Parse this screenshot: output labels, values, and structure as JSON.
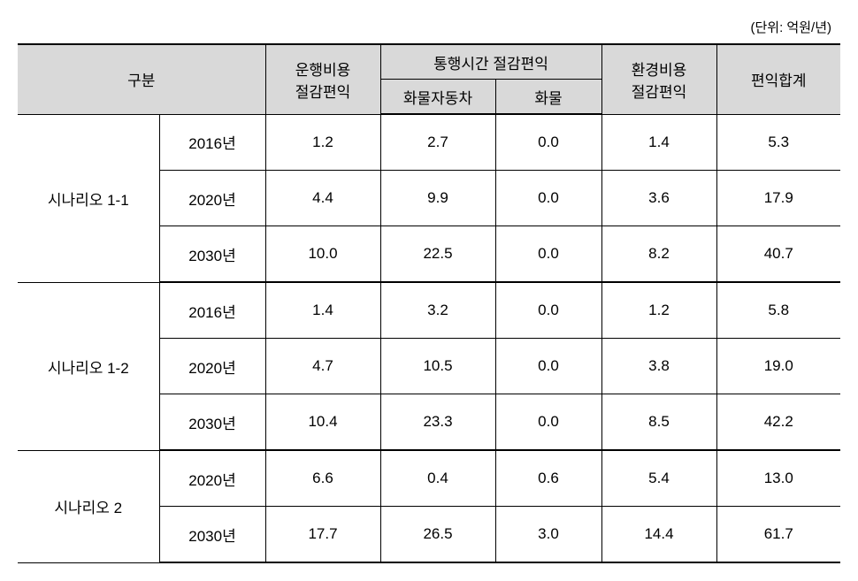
{
  "unit_label": "(단위: 억원/년)",
  "header": {
    "category": "구분",
    "op_cost": "운행비용\n절감편익",
    "travel_time": "통행시간 절감편익",
    "tt_truck": "화물자동차",
    "tt_freight": "화물",
    "env_cost": "환경비용\n절감편익",
    "total": "편익합계"
  },
  "groups": [
    {
      "name": "시나리오 1-1",
      "rows": [
        {
          "year": "2016년",
          "op": "1.2",
          "tt1": "2.7",
          "tt2": "0.0",
          "env": "1.4",
          "total": "5.3"
        },
        {
          "year": "2020년",
          "op": "4.4",
          "tt1": "9.9",
          "tt2": "0.0",
          "env": "3.6",
          "total": "17.9"
        },
        {
          "year": "2030년",
          "op": "10.0",
          "tt1": "22.5",
          "tt2": "0.0",
          "env": "8.2",
          "total": "40.7"
        }
      ]
    },
    {
      "name": "시나리오 1-2",
      "rows": [
        {
          "year": "2016년",
          "op": "1.4",
          "tt1": "3.2",
          "tt2": "0.0",
          "env": "1.2",
          "total": "5.8"
        },
        {
          "year": "2020년",
          "op": "4.7",
          "tt1": "10.5",
          "tt2": "0.0",
          "env": "3.8",
          "total": "19.0"
        },
        {
          "year": "2030년",
          "op": "10.4",
          "tt1": "23.3",
          "tt2": "0.0",
          "env": "8.5",
          "total": "42.2"
        }
      ]
    },
    {
      "name": "시나리오 2",
      "rows": [
        {
          "year": "2020년",
          "op": "6.6",
          "tt1": "0.4",
          "tt2": "0.6",
          "env": "5.4",
          "total": "13.0"
        },
        {
          "year": "2030년",
          "op": "17.7",
          "tt1": "26.5",
          "tt2": "3.0",
          "env": "14.4",
          "total": "61.7"
        }
      ]
    }
  ],
  "styles": {
    "header_bg": "#d9d9d9",
    "border_color": "#000000",
    "font_size_body": 17,
    "font_size_unit": 15
  }
}
